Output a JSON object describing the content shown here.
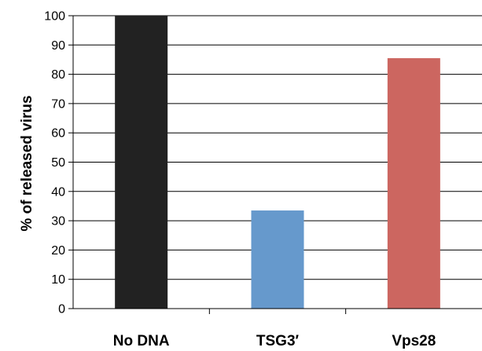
{
  "chart_data": {
    "type": "bar",
    "title": "",
    "xlabel": "",
    "ylabel": "% of released virus",
    "categories": [
      "No DNA",
      "TSG3′",
      "Vps28"
    ],
    "values": [
      100,
      33.5,
      85.5
    ],
    "colors": [
      "#222222",
      "#6699cc",
      "#cc6660"
    ],
    "ylim": [
      0,
      100
    ],
    "yticks": [
      0,
      10,
      20,
      30,
      40,
      50,
      60,
      70,
      80,
      90,
      100
    ],
    "grid": true,
    "legend": "none"
  }
}
